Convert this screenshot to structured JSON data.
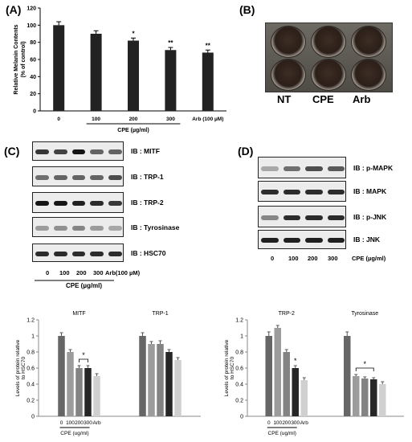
{
  "panels": {
    "a": "(A)",
    "b": "(B)",
    "c": "(C)",
    "d": "(D)"
  },
  "panel_a": {
    "ylabel": "Relative Melanin Contents\n(% of control)",
    "xlabel": "CPE (µg/ml)",
    "arb_label": "Arb (100 µM)"
  },
  "panel_b": {
    "labels": [
      "NT",
      "CPE",
      "Arb"
    ]
  },
  "panel_c": {
    "blots": [
      "IB : MITF",
      "IB : TRP-1",
      "IB : TRP-2",
      "IB : Tyrosinase",
      "IB : HSC70"
    ],
    "lanes": [
      "0",
      "100",
      "200",
      "300",
      "Arb(100 µM)"
    ],
    "xlabel": "CPE (µg/ml)"
  },
  "panel_d": {
    "blots": [
      "IB : p-MAPK",
      "IB : MAPK",
      "IB : p-JNK",
      "IB : JNK"
    ],
    "lanes": [
      "0",
      "100",
      "200",
      "300"
    ],
    "xlabel": "CPE (µg/ml)"
  },
  "chart_data": [
    {
      "type": "bar",
      "categories": [
        "0",
        "100",
        "200",
        "300",
        "Arb (100 µM)"
      ],
      "values": [
        100,
        90,
        82,
        71,
        68
      ],
      "errors": [
        4,
        3.5,
        3,
        3,
        3
      ],
      "significance": [
        "",
        "",
        "*",
        "**",
        "**"
      ],
      "ylabel": "Relative Melanin Contents\n(% of control)",
      "xlabel": "CPE (µg/ml)",
      "ylim": [
        0,
        120
      ],
      "yticks": [
        0,
        20,
        40,
        60,
        80,
        100,
        120
      ],
      "colors": [
        "#222222"
      ]
    },
    {
      "type": "bar",
      "groups": [
        "MITF",
        "TRP-1"
      ],
      "categories": [
        "0",
        "100",
        "200",
        "300",
        "Arb"
      ],
      "series": [
        {
          "name": "MITF",
          "values": [
            1.0,
            0.8,
            0.6,
            0.6,
            0.5
          ],
          "errors": [
            0.04,
            0.03,
            0.03,
            0.03,
            0.03
          ]
        },
        {
          "name": "TRP-1",
          "values": [
            1.0,
            0.9,
            0.9,
            0.8,
            0.7
          ],
          "errors": [
            0.04,
            0.03,
            0.04,
            0.03,
            0.03
          ]
        }
      ],
      "bracket": {
        "group": "MITF",
        "from": "200",
        "to": "300",
        "label": "*"
      },
      "ylabel": "Levels of protein relative to HSC70",
      "xlabel": "CPE (ug/ml)",
      "ylim": [
        0,
        1.2
      ],
      "yticks": [
        0,
        0.2,
        0.4,
        0.6,
        0.8,
        1,
        1.2
      ],
      "bar_colors": [
        "#666666",
        "#9c9c9c",
        "#838383",
        "#262626",
        "#d0d0d0"
      ]
    },
    {
      "type": "bar",
      "groups": [
        "TRP-2",
        "Tyrosinase"
      ],
      "categories": [
        "0",
        "100",
        "200",
        "300",
        "Arb"
      ],
      "series": [
        {
          "name": "TRP-2",
          "values": [
            1.0,
            1.1,
            0.8,
            0.6,
            0.45
          ],
          "errors": [
            0.05,
            0.03,
            0.03,
            0.03,
            0.03
          ]
        },
        {
          "name": "Tyrosinase",
          "values": [
            1.0,
            0.5,
            0.47,
            0.46,
            0.4
          ],
          "errors": [
            0.05,
            0.02,
            0.02,
            0.02,
            0.03
          ]
        }
      ],
      "stars": [
        {
          "group": "TRP-2",
          "category": "300",
          "label": "*"
        }
      ],
      "bracket": {
        "group": "Tyrosinase",
        "from": "100",
        "to": "300",
        "label": "*"
      },
      "ylabel": "Levels of protein relative to HSC70",
      "xlabel": "CPE (ug/ml)",
      "ylim": [
        0,
        1.2
      ],
      "yticks": [
        0,
        0.2,
        0.4,
        0.6,
        0.8,
        1,
        1.2
      ],
      "bar_colors": [
        "#666666",
        "#9c9c9c",
        "#838383",
        "#262626",
        "#d0d0d0"
      ]
    }
  ]
}
